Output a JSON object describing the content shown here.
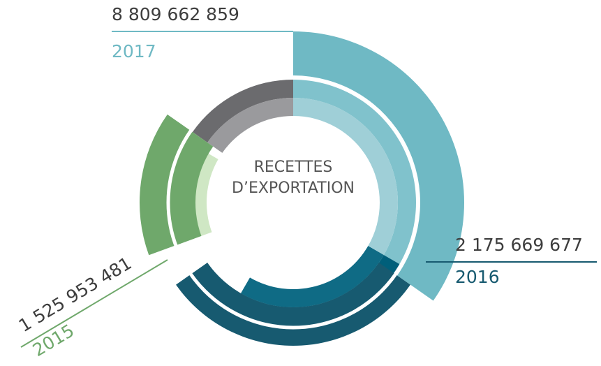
{
  "chart_data": {
    "type": "donut",
    "center_label": [
      "RECETTES",
      "D’EXPORTATION"
    ],
    "categories": [
      "2017",
      "2016",
      "2015"
    ],
    "values": [
      8809662859,
      2175669677,
      1525953481
    ],
    "value_labels": [
      "8 809 662 859",
      "2 175 669 677",
      "1 525 953 481"
    ],
    "colors": [
      "#6fb9c4",
      "#175a70",
      "#6fa86b"
    ]
  }
}
